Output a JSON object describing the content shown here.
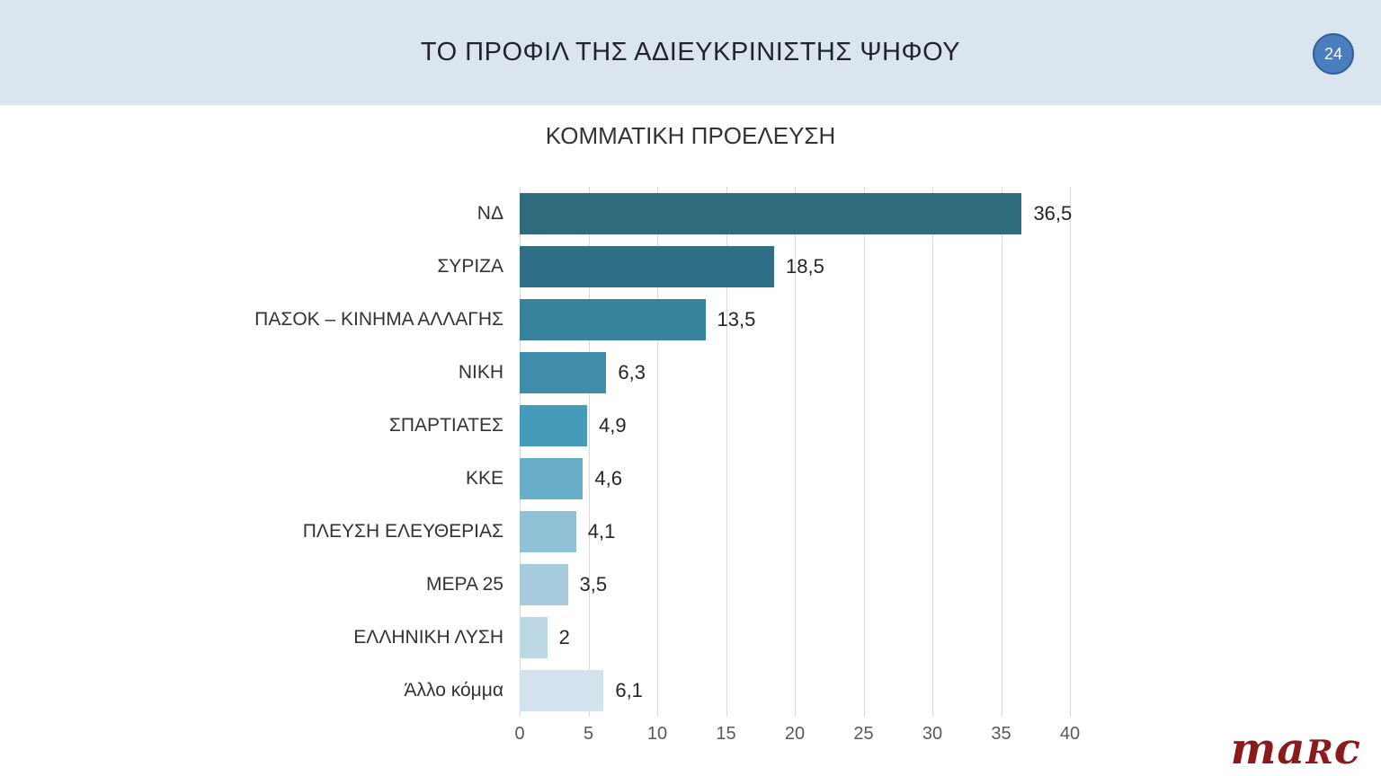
{
  "header": {
    "title": "ΤΟ ΠΡΟΦΙΛ ΤΗΣ ΑΔΙΕΥΚΡΙΝΙΣΤΗΣ ΨΗΦΟΥ",
    "page_number": "24",
    "background_color": "#dbe5ef",
    "badge_fill": "#4a7ebc",
    "badge_border": "#31609b"
  },
  "chart_data": {
    "type": "bar",
    "orientation": "horizontal",
    "title": "ΚΟΜΜΑΤΙΚΗ ΠΡΟΕΛΕΥΣΗ",
    "categories": [
      "ΝΔ",
      "ΣΥΡΙΖΑ",
      "ΠΑΣΟΚ – ΚΙΝΗΜΑ ΑΛΛΑΓΗΣ",
      "ΝΙΚΗ",
      "ΣΠΑΡΤΙΑΤΕΣ",
      "ΚΚΕ",
      "ΠΛΕΥΣΗ ΕΛΕΥΘΕΡΙΑΣ",
      "ΜΕΡΑ 25",
      "ΕΛΛΗΝΙΚΗ ΛΥΣΗ",
      "Άλλο κόμμα"
    ],
    "values": [
      36.5,
      18.5,
      13.5,
      6.3,
      4.9,
      4.6,
      4.1,
      3.5,
      2,
      6.1
    ],
    "value_labels": [
      "36,5",
      "18,5",
      "13,5",
      "6,3",
      "4,9",
      "4,6",
      "4,1",
      "3,5",
      "2",
      "6,1"
    ],
    "bar_colors": [
      "#2e6b7d",
      "#2f7086",
      "#38839c",
      "#3f8dab",
      "#459cba",
      "#68aec8",
      "#91c1d6",
      "#a6cbdc",
      "#bdd8e5",
      "#d2e3ed"
    ],
    "xlabel": "",
    "ylabel": "",
    "xlim": [
      0,
      40
    ],
    "x_ticks": [
      0,
      5,
      10,
      15,
      20,
      25,
      30,
      35,
      40
    ],
    "grid": true,
    "gridline_color": "#d9d9d9",
    "legend": "none"
  },
  "footer": {
    "logo_text": "marc",
    "logo_parts": {
      "left": "ma",
      "smallcap": "R",
      "right": "c"
    },
    "logo_color": "#8b1b1b"
  }
}
